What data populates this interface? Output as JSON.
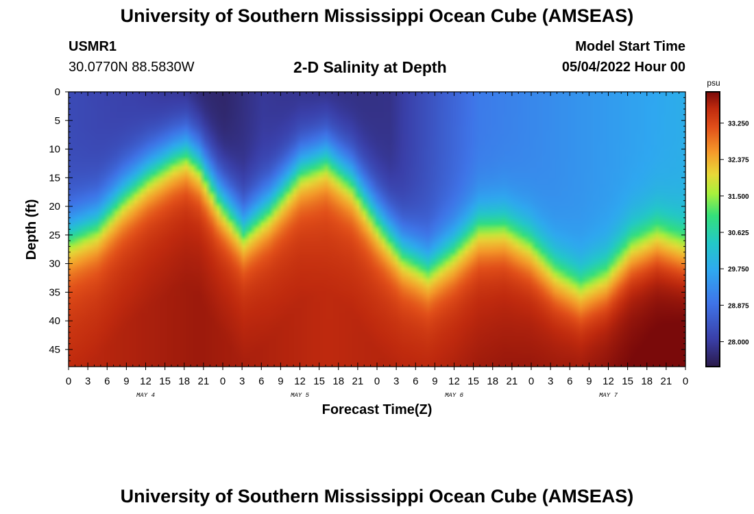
{
  "page": {
    "title": "University of Southern Mississippi Ocean Cube (AMSEAS)",
    "footer_title": "University of Southern Mississippi Ocean Cube (AMSEAS)"
  },
  "station": {
    "id": "USMR1",
    "coords": "30.0770N  88.5830W"
  },
  "model": {
    "label": "Model Start Time",
    "start": "05/04/2022 Hour 00"
  },
  "chart_data": {
    "type": "heatmap",
    "title": "2-D Salinity at Depth",
    "xlabel": "Forecast Time(Z)",
    "ylabel": "Depth (ft)",
    "x_range_hours": [
      0,
      96
    ],
    "ylim": [
      0,
      48
    ],
    "x_ticks": [
      "0",
      "3",
      "6",
      "9",
      "12",
      "15",
      "18",
      "21",
      "0",
      "3",
      "6",
      "9",
      "12",
      "15",
      "18",
      "21",
      "0",
      "3",
      "6",
      "9",
      "12",
      "15",
      "18",
      "21",
      "0",
      "3",
      "6",
      "9",
      "12",
      "15",
      "18",
      "21",
      "0"
    ],
    "y_ticks": [
      "0",
      "5",
      "10",
      "15",
      "20",
      "25",
      "30",
      "35",
      "40",
      "45"
    ],
    "day_labels": [
      {
        "label": "MAY 4",
        "hour": 12
      },
      {
        "label": "MAY 5",
        "hour": 36
      },
      {
        "label": "MAY 6",
        "hour": 60
      },
      {
        "label": "MAY 7",
        "hour": 84
      }
    ],
    "colorbar": {
      "units": "psu",
      "min": 27.4,
      "max": 34.0,
      "ticks": [
        "28.000",
        "28.875",
        "29.750",
        "30.625",
        "31.500",
        "32.375",
        "33.250"
      ],
      "tick_values": [
        28.0,
        28.875,
        29.75,
        30.625,
        31.5,
        32.375,
        33.25
      ]
    },
    "halocline": {
      "hours": [
        0,
        4,
        8,
        12,
        16,
        18,
        20,
        23,
        27,
        31,
        36,
        40,
        44,
        48,
        52,
        56,
        60,
        64,
        68,
        72,
        76,
        80,
        84,
        88,
        92,
        96
      ],
      "depth_ft": [
        25,
        23,
        18,
        14,
        11,
        10,
        12,
        18,
        24,
        20,
        13,
        11,
        15,
        22,
        28,
        31,
        28,
        24,
        24,
        27,
        32,
        35,
        33,
        28,
        26,
        28
      ]
    },
    "surface_salinity_psu": {
      "hours": [
        0,
        10,
        20,
        24,
        30,
        40,
        50,
        58,
        64,
        96
      ],
      "psu": [
        28.2,
        28.0,
        27.6,
        27.6,
        27.9,
        27.7,
        27.8,
        28.5,
        29.0,
        29.8
      ]
    },
    "bottom_salinity_psu": {
      "hours": [
        0,
        20,
        40,
        60,
        80,
        96
      ],
      "psu": [
        33.0,
        33.3,
        33.0,
        33.2,
        33.5,
        33.9
      ]
    }
  }
}
